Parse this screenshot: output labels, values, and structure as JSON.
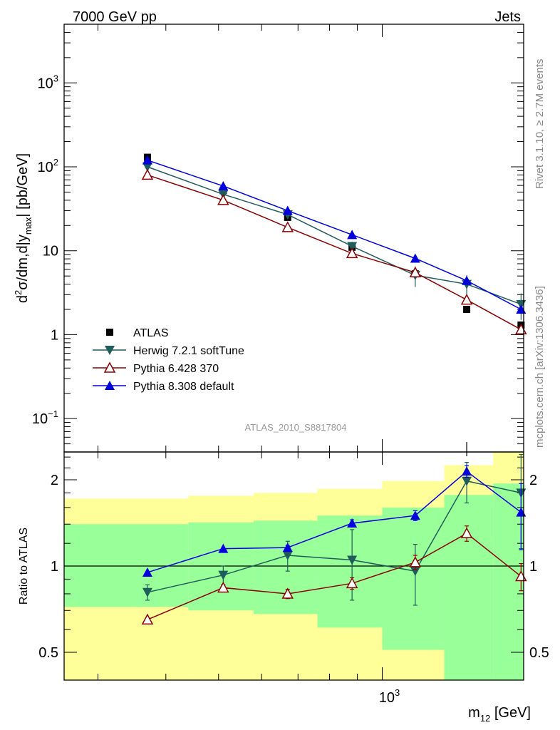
{
  "header": {
    "left": "7000 GeV pp",
    "right": "Jets"
  },
  "side_labels": {
    "rivet": "Rivet 3.1.10, ≥ 2.7M events",
    "mcplots": "mcplots.cern.ch [arXiv:1306.3436]"
  },
  "analysis_id": "ATLAS_2010_S8817804",
  "colors": {
    "atlas": "#000000",
    "herwig": "#1f5c5c",
    "pythia6": "#8b0000",
    "pythia8": "#0000dd",
    "band_inner": "#99ff99",
    "band_outer": "#ffff99"
  },
  "chart_data": [
    {
      "type": "scatter",
      "panel": "main",
      "ylabel": "d²σ/dm,d|y_max| [pb/GeV]",
      "ylabel_parts": {
        "d": "d",
        "sup": "2",
        "mid": "σ/dm,d|y",
        "sub": "max",
        "end": "| [pb/GeV]"
      },
      "xscale": "log",
      "yscale": "log",
      "xlim": [
        260,
        1820
      ],
      "ylim": [
        0.04,
        5000
      ],
      "y_ticks": [
        {
          "v": 0.1,
          "base": "10",
          "exp": "−1"
        },
        {
          "v": 1,
          "label": "1"
        },
        {
          "v": 10,
          "label": "10"
        },
        {
          "v": 100,
          "base": "10",
          "exp": "2"
        },
        {
          "v": 1000,
          "base": "10",
          "exp": "3"
        }
      ],
      "x": [
        370,
        510,
        670,
        880,
        1150,
        1430,
        1800
      ],
      "series": [
        {
          "name": "ATLAS",
          "marker": "square",
          "values": [
            130,
            52,
            25,
            11,
            5.3,
            2.0,
            1.3
          ]
        },
        {
          "name": "Herwig 7.2.1 softTune",
          "marker": "triangle-down",
          "values": [
            100,
            47,
            27,
            11.3,
            5.1,
            4.0,
            2.3
          ],
          "errors": [
            0,
            0,
            0,
            1.5,
            1.4,
            1.1,
            0.8
          ]
        },
        {
          "name": "Pythia 6.428 370",
          "marker": "triangle-up-open",
          "values": [
            80,
            40,
            19,
            9.3,
            5.5,
            2.6,
            1.15
          ]
        },
        {
          "name": "Pythia 8.308 default",
          "marker": "triangle-up",
          "values": [
            120,
            59,
            30,
            15.5,
            8.1,
            4.4,
            2.0
          ]
        }
      ],
      "legend_position": "lower-left"
    },
    {
      "type": "scatter",
      "panel": "ratio",
      "ylabel": "Ratio to ATLAS",
      "xlabel": "m_12 [GeV]",
      "xlabel_parts": {
        "m": "m",
        "sub": "12",
        "end": " [GeV]"
      },
      "xscale": "log",
      "yscale": "log",
      "xlim": [
        260,
        1820
      ],
      "ylim": [
        0.4,
        2.5
      ],
      "y_ticks": [
        {
          "v": 0.5,
          "label": "0.5"
        },
        {
          "v": 1,
          "label": "1"
        },
        {
          "v": 2,
          "label": "2"
        }
      ],
      "x_ticks": [
        {
          "v": 1000,
          "base": "10",
          "exp": "3"
        }
      ],
      "bands": [
        {
          "x0": 260,
          "x1": 440,
          "inner": [
            0.72,
            1.4
          ],
          "outer": [
            0.4,
            1.72
          ]
        },
        {
          "x0": 440,
          "x1": 580,
          "inner": [
            0.7,
            1.42
          ],
          "outer": [
            0.4,
            1.76
          ]
        },
        {
          "x0": 580,
          "x1": 760,
          "inner": [
            0.68,
            1.44
          ],
          "outer": [
            0.4,
            1.8
          ]
        },
        {
          "x0": 760,
          "x1": 1000,
          "inner": [
            0.61,
            1.5
          ],
          "outer": [
            0.4,
            1.86
          ]
        },
        {
          "x0": 1000,
          "x1": 1300,
          "inner": [
            0.51,
            1.6
          ],
          "outer": [
            0.4,
            1.98
          ]
        },
        {
          "x0": 1300,
          "x1": 1600,
          "inner": [
            0.4,
            1.77
          ],
          "outer": [
            0.4,
            2.25
          ]
        },
        {
          "x0": 1600,
          "x1": 1820,
          "inner": [
            0.4,
            1.94
          ],
          "outer": [
            0.4,
            2.5
          ]
        }
      ],
      "x": [
        370,
        510,
        670,
        880,
        1150,
        1430,
        1800
      ],
      "series": [
        {
          "name": "Herwig 7.2.1 softTune",
          "values": [
            0.81,
            0.93,
            1.09,
            1.05,
            0.96,
            1.98,
            1.8
          ],
          "err_lo": [
            0.05,
            0.07,
            0.13,
            0.29,
            0.23,
            0.32,
            0.65
          ],
          "err_hi": [
            0.05,
            0.07,
            0.13,
            0.29,
            0.23,
            0.32,
            0.65
          ]
        },
        {
          "name": "Pythia 6.428 370",
          "values": [
            0.65,
            0.84,
            0.8,
            0.87,
            1.03,
            1.3,
            0.92
          ],
          "err_lo": [
            0,
            0.02,
            0.03,
            0.04,
            0.06,
            0.08,
            0.1
          ],
          "err_hi": [
            0,
            0.02,
            0.03,
            0.04,
            0.06,
            0.08,
            0.1
          ]
        },
        {
          "name": "Pythia 8.308 default",
          "values": [
            0.95,
            1.15,
            1.16,
            1.41,
            1.5,
            2.14,
            1.54
          ],
          "err_lo": [
            0,
            0,
            0.02,
            0.04,
            0.06,
            0.1,
            0.4
          ],
          "err_hi": [
            0,
            0,
            0.02,
            0.04,
            0.06,
            0.1,
            0.4
          ]
        }
      ],
      "reference_line": 1
    }
  ]
}
